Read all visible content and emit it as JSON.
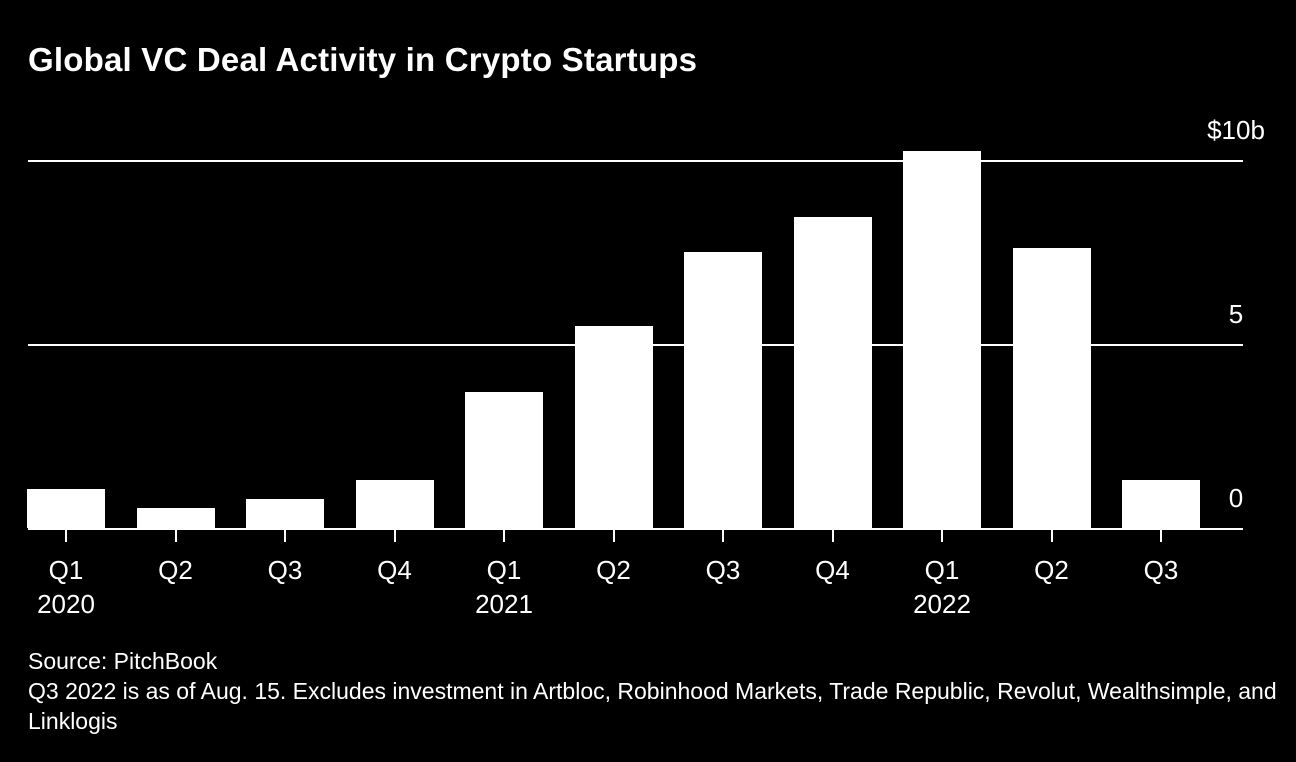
{
  "chart_data": {
    "type": "bar",
    "title": "Global VC Deal Activity in Crypto Startups",
    "categories": [
      "Q1 2020",
      "Q2 2020",
      "Q3 2020",
      "Q4 2020",
      "Q1 2021",
      "Q2 2021",
      "Q3 2021",
      "Q4 2021",
      "Q1 2022",
      "Q2 2022",
      "Q3 2022"
    ],
    "values": [
      1.05,
      0.55,
      0.8,
      1.3,
      3.7,
      5.5,
      7.5,
      8.45,
      10.25,
      7.6,
      1.3
    ],
    "unit": "billions USD",
    "xlabel": "",
    "ylabel": "",
    "ylim": [
      0,
      10
    ],
    "y_ticks": [
      {
        "value": 10,
        "label": "$10b"
      },
      {
        "value": 5,
        "label": "5"
      },
      {
        "value": 0,
        "label": "0"
      }
    ],
    "year_labels": [
      "2020",
      "2021",
      "2022"
    ],
    "grid": "horizontal",
    "legend": "none",
    "bar_color": "#ffffff",
    "background_color": "#000000",
    "text_color": "#ffffff"
  },
  "footer": {
    "source": "Source: PitchBook",
    "note": "Q3 2022 is as of Aug. 15. Excludes investment in Artbloc, Robinhood Markets, Trade Republic, Revolut, Wealthsimple, and Linklogis"
  }
}
